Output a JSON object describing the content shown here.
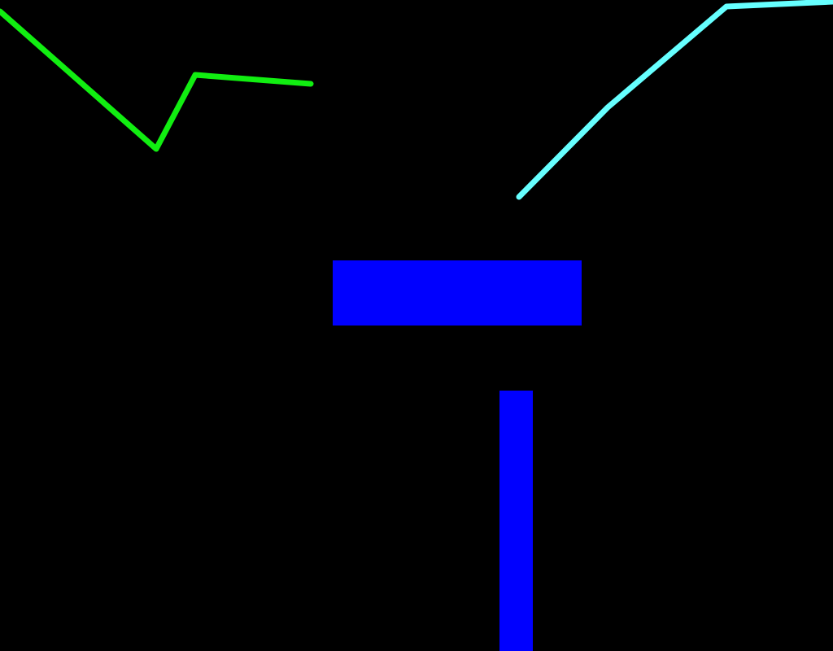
{
  "scene": {
    "background": "#000000",
    "green_line_color": "#11ee11",
    "cyan_line_color": "#66ffff",
    "block_color": "#0000ff"
  }
}
